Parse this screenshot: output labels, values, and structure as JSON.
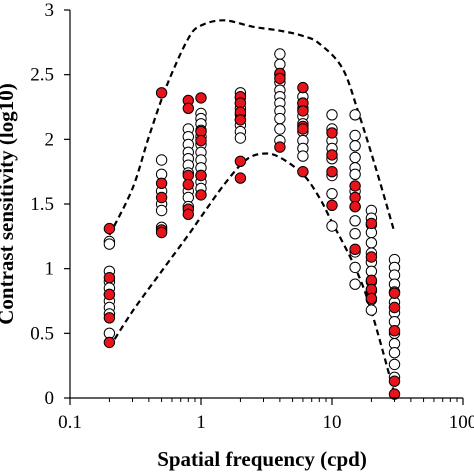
{
  "chart_data": {
    "type": "scatter",
    "title": "",
    "xlabel": "Spatial frequency (cpd)",
    "ylabel": "Contrast sensitivity (log10)",
    "x_scale": "log",
    "xlim": [
      0.1,
      100
    ],
    "ylim": [
      0,
      3
    ],
    "x_ticks": [
      0.1,
      1,
      10,
      100
    ],
    "x_tick_labels": [
      "0.1",
      "1",
      "10",
      "100"
    ],
    "y_ticks": [
      0,
      0.5,
      1,
      1.5,
      2,
      2.5,
      3
    ],
    "y_tick_labels": [
      "0",
      "0.5",
      "1",
      "1.5",
      "2",
      "2.5",
      "3"
    ],
    "grid": false,
    "colors": {
      "filled_marker": "#e8141c",
      "open_marker": "#ffffff",
      "marker_edge": "#000000",
      "bound_line": "#000000"
    },
    "series": [
      {
        "marker": "open",
        "points": [
          [
            0.2,
            1.21
          ],
          [
            0.2,
            1.19
          ],
          [
            0.2,
            0.98
          ],
          [
            0.2,
            0.9
          ],
          [
            0.2,
            0.85
          ],
          [
            0.2,
            0.8
          ],
          [
            0.2,
            0.75
          ],
          [
            0.2,
            0.7
          ],
          [
            0.2,
            0.65
          ],
          [
            0.2,
            0.5
          ],
          [
            0.5,
            1.84
          ],
          [
            0.5,
            1.73
          ],
          [
            0.5,
            1.6
          ],
          [
            0.5,
            1.5
          ],
          [
            0.5,
            1.45
          ],
          [
            0.5,
            1.32
          ],
          [
            0.8,
            2.08
          ],
          [
            0.8,
            2.02
          ],
          [
            0.8,
            1.96
          ],
          [
            0.8,
            1.9
          ],
          [
            0.8,
            1.85
          ],
          [
            0.8,
            1.8
          ],
          [
            0.8,
            1.74
          ],
          [
            0.8,
            1.6
          ],
          [
            0.8,
            1.55
          ],
          [
            0.8,
            1.48
          ],
          [
            1,
            2.2
          ],
          [
            1,
            2.16
          ],
          [
            1,
            2.12
          ],
          [
            1,
            2.07
          ],
          [
            1,
            2.02
          ],
          [
            1,
            1.96
          ],
          [
            1,
            1.9
          ],
          [
            1,
            1.84
          ],
          [
            1,
            1.78
          ],
          [
            1,
            1.72
          ],
          [
            1,
            1.67
          ],
          [
            1,
            1.62
          ],
          [
            2,
            2.36
          ],
          [
            2,
            2.32
          ],
          [
            2,
            2.28
          ],
          [
            2,
            2.24
          ],
          [
            2,
            2.19
          ],
          [
            2,
            2.15
          ],
          [
            2,
            2.11
          ],
          [
            2,
            2.06
          ],
          [
            2,
            2.01
          ],
          [
            4,
            2.66
          ],
          [
            4,
            2.58
          ],
          [
            4,
            2.5
          ],
          [
            4,
            2.44
          ],
          [
            4,
            2.38
          ],
          [
            4,
            2.33
          ],
          [
            4,
            2.28
          ],
          [
            4,
            2.22
          ],
          [
            4,
            2.16
          ],
          [
            4,
            2.08
          ],
          [
            4,
            1.99
          ],
          [
            6,
            2.33
          ],
          [
            6,
            2.28
          ],
          [
            6,
            2.24
          ],
          [
            6,
            2.18
          ],
          [
            6,
            2.12
          ],
          [
            6,
            2.06
          ],
          [
            6,
            1.99
          ],
          [
            6,
            1.93
          ],
          [
            6,
            1.87
          ],
          [
            10,
            2.19
          ],
          [
            10,
            2.08
          ],
          [
            10,
            1.99
          ],
          [
            10,
            1.93
          ],
          [
            10,
            1.85
          ],
          [
            10,
            1.72
          ],
          [
            10,
            1.58
          ],
          [
            10,
            1.33
          ],
          [
            15,
            2.19
          ],
          [
            15,
            2.03
          ],
          [
            15,
            1.95
          ],
          [
            15,
            1.86
          ],
          [
            15,
            1.78
          ],
          [
            15,
            1.73
          ],
          [
            15,
            1.6
          ],
          [
            15,
            1.48
          ],
          [
            15,
            1.37
          ],
          [
            15,
            1.27
          ],
          [
            15,
            1.13
          ],
          [
            15,
            1.01
          ],
          [
            15,
            0.88
          ],
          [
            20,
            1.45
          ],
          [
            20,
            1.39
          ],
          [
            20,
            1.34
          ],
          [
            20,
            1.28
          ],
          [
            20,
            1.2
          ],
          [
            20,
            1.12
          ],
          [
            20,
            1.05
          ],
          [
            20,
            0.98
          ],
          [
            20,
            0.9
          ],
          [
            20,
            0.83
          ],
          [
            20,
            0.76
          ],
          [
            20,
            0.68
          ],
          [
            30,
            1.07
          ],
          [
            30,
            1.01
          ],
          [
            30,
            0.95
          ],
          [
            30,
            0.88
          ],
          [
            30,
            0.82
          ],
          [
            30,
            0.74
          ],
          [
            30,
            0.66
          ],
          [
            30,
            0.59
          ],
          [
            30,
            0.5
          ],
          [
            30,
            0.42
          ],
          [
            30,
            0.35
          ],
          [
            30,
            0.26
          ],
          [
            30,
            0.16
          ]
        ]
      },
      {
        "marker": "filled",
        "points": [
          [
            0.2,
            1.31
          ],
          [
            0.2,
            0.93
          ],
          [
            0.2,
            0.8
          ],
          [
            0.2,
            0.62
          ],
          [
            0.2,
            0.43
          ],
          [
            0.5,
            2.36
          ],
          [
            0.5,
            1.66
          ],
          [
            0.5,
            1.55
          ],
          [
            0.5,
            1.3
          ],
          [
            0.5,
            1.28
          ],
          [
            0.8,
            2.3
          ],
          [
            0.8,
            2.24
          ],
          [
            0.8,
            1.72
          ],
          [
            0.8,
            1.65
          ],
          [
            0.8,
            1.46
          ],
          [
            0.8,
            1.42
          ],
          [
            1,
            2.32
          ],
          [
            1,
            2.06
          ],
          [
            1,
            1.99
          ],
          [
            1,
            1.72
          ],
          [
            1,
            1.57
          ],
          [
            2,
            2.33
          ],
          [
            2,
            2.28
          ],
          [
            2,
            2.21
          ],
          [
            2,
            2.15
          ],
          [
            2,
            1.83
          ],
          [
            2,
            1.7
          ],
          [
            4,
            2.51
          ],
          [
            4,
            2.47
          ],
          [
            4,
            1.94
          ],
          [
            6,
            2.4
          ],
          [
            6,
            2.28
          ],
          [
            6,
            2.22
          ],
          [
            6,
            2.1
          ],
          [
            6,
            2.08
          ],
          [
            6,
            1.75
          ],
          [
            10,
            2.05
          ],
          [
            10,
            1.88
          ],
          [
            10,
            1.75
          ],
          [
            10,
            1.49
          ],
          [
            15,
            1.64
          ],
          [
            15,
            1.55
          ],
          [
            15,
            1.48
          ],
          [
            15,
            1.15
          ],
          [
            20,
            1.35
          ],
          [
            20,
            1.09
          ],
          [
            20,
            0.91
          ],
          [
            20,
            0.84
          ],
          [
            20,
            0.77
          ],
          [
            30,
            0.81
          ],
          [
            30,
            0.7
          ],
          [
            30,
            0.52
          ],
          [
            30,
            0.13
          ],
          [
            30,
            0.03
          ]
        ]
      }
    ],
    "bounds": [
      {
        "style": "dashed",
        "points": [
          [
            0.2,
            1.26
          ],
          [
            0.3,
            1.62
          ],
          [
            0.4,
            2.02
          ],
          [
            0.55,
            2.42
          ],
          [
            0.8,
            2.78
          ],
          [
            1,
            2.88
          ],
          [
            1.5,
            2.92
          ],
          [
            2.5,
            2.87
          ],
          [
            4,
            2.84
          ],
          [
            6,
            2.8
          ],
          [
            8,
            2.74
          ],
          [
            12,
            2.55
          ],
          [
            16,
            2.2
          ],
          [
            22,
            1.75
          ],
          [
            30,
            1.28
          ]
        ]
      },
      {
        "style": "dashed",
        "points": [
          [
            0.2,
            0.39
          ],
          [
            0.3,
            0.67
          ],
          [
            0.5,
            0.98
          ],
          [
            0.8,
            1.26
          ],
          [
            1,
            1.4
          ],
          [
            1.5,
            1.65
          ],
          [
            2.2,
            1.84
          ],
          [
            3,
            1.89
          ],
          [
            4,
            1.86
          ],
          [
            6,
            1.73
          ],
          [
            8,
            1.55
          ],
          [
            10,
            1.36
          ],
          [
            15,
            1.01
          ],
          [
            20,
            0.67
          ],
          [
            30,
            0.03
          ]
        ]
      }
    ]
  }
}
